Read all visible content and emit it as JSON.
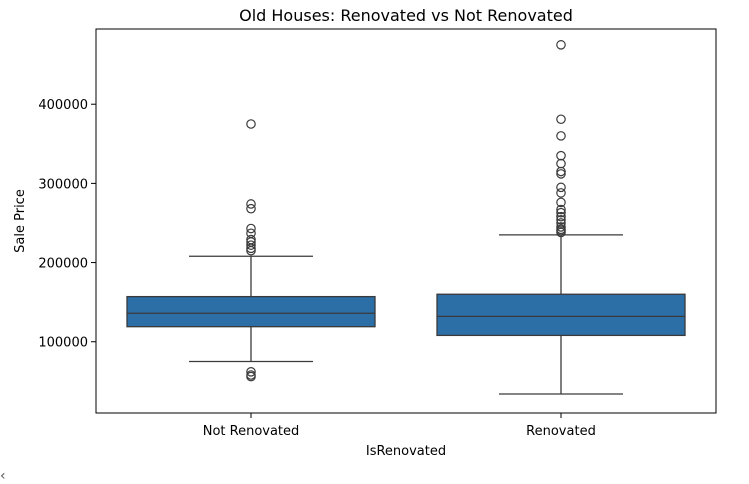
{
  "chart_data": {
    "type": "box",
    "title": "Old Houses: Renovated vs Not Renovated",
    "xlabel": "IsRenovated",
    "ylabel": "Sale Price",
    "ylim": [
      10000,
      495000
    ],
    "yticks": [
      100000,
      200000,
      300000,
      400000
    ],
    "ytick_labels": [
      "100000",
      "200000",
      "300000",
      "400000"
    ],
    "categories": [
      "Not Renovated",
      "Renovated"
    ],
    "box_color": "#2c6fa6",
    "line_color": "#3a3a3a",
    "grid": false,
    "boxes": [
      {
        "name": "Not Renovated",
        "whisker_low": 75000,
        "q1": 119000,
        "median": 136000,
        "q3": 157000,
        "whisker_high": 208000,
        "outliers": [
          56000,
          58000,
          62000,
          215000,
          218000,
          222000,
          226000,
          229000,
          237000,
          243000,
          268000,
          274000,
          375000
        ]
      },
      {
        "name": "Renovated",
        "whisker_low": 34000,
        "q1": 108000,
        "median": 132000,
        "q3": 160000,
        "whisker_high": 235000,
        "outliers": [
          238000,
          240000,
          242000,
          245000,
          250000,
          254000,
          258000,
          263000,
          267000,
          276000,
          288000,
          295000,
          312000,
          315000,
          325000,
          335000,
          360000,
          381000,
          475000
        ]
      }
    ]
  }
}
